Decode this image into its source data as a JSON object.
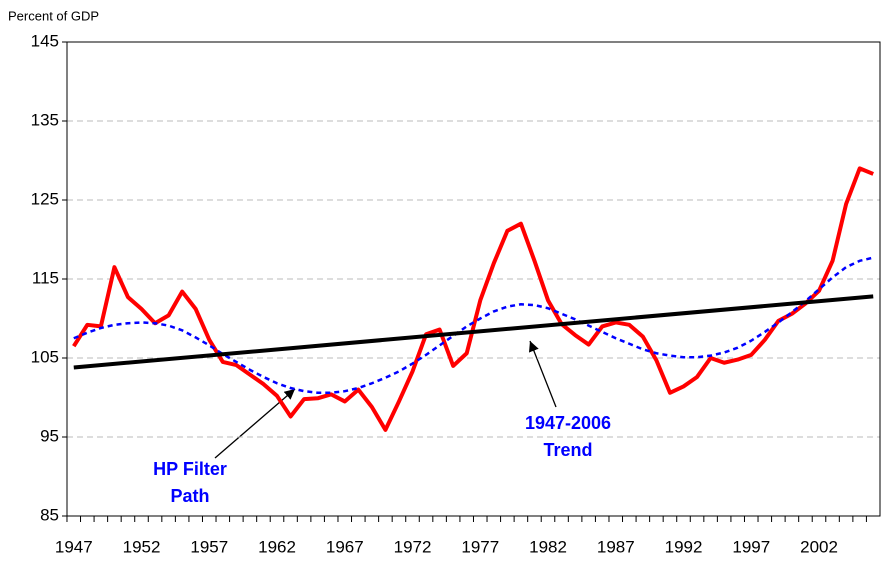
{
  "chart_data": {
    "type": "line",
    "ylabel": "Percent of GDP",
    "x": [
      1947,
      1948,
      1949,
      1950,
      1951,
      1952,
      1953,
      1954,
      1955,
      1956,
      1957,
      1958,
      1959,
      1960,
      1961,
      1962,
      1963,
      1964,
      1965,
      1966,
      1967,
      1968,
      1969,
      1970,
      1971,
      1972,
      1973,
      1974,
      1975,
      1976,
      1977,
      1978,
      1979,
      1980,
      1981,
      1982,
      1983,
      1984,
      1985,
      1986,
      1987,
      1988,
      1989,
      1990,
      1991,
      1992,
      1993,
      1994,
      1995,
      1996,
      1997,
      1998,
      1999,
      2000,
      2001,
      2002,
      2003,
      2004,
      2005,
      2006
    ],
    "series": [
      {
        "color": "#ff0000",
        "style": "solid",
        "values": [
          106.5,
          109.2,
          109,
          116.5,
          112.7,
          111.2,
          109.4,
          110.4,
          113.4,
          111.2,
          107.3,
          104.5,
          104.1,
          102.9,
          101.7,
          100.2,
          97.6,
          99.8,
          99.9,
          100.4,
          99.5,
          101,
          98.8,
          95.9,
          99.5,
          103.3,
          108,
          108.6,
          104,
          105.6,
          112.3,
          117,
          121.1,
          122,
          117.3,
          112.3,
          109.3,
          107.9,
          106.7,
          109,
          109.5,
          109.2,
          107.7,
          104.7,
          100.6,
          101.4,
          102.6,
          105,
          104.4,
          104.8,
          105.4,
          107.3,
          109.7,
          110.6,
          111.9,
          113.5,
          117.3,
          124.5,
          129,
          128.3
        ]
      },
      {
        "color": "#0000ff",
        "style": "dashed",
        "values": [
          107.5,
          108.2,
          108.8,
          109.2,
          109.4,
          109.5,
          109.4,
          109.1,
          108.5,
          107.6,
          106.6,
          105.5,
          104.5,
          103.5,
          102.6,
          101.8,
          101.2,
          100.8,
          100.6,
          100.6,
          100.8,
          101.2,
          101.8,
          102.5,
          103.3,
          104.3,
          105.4,
          106.6,
          107.8,
          109.0,
          110.0,
          110.9,
          111.5,
          111.8,
          111.7,
          111.3,
          110.6,
          109.9,
          109.1,
          108.3,
          107.5,
          106.8,
          106.1,
          105.6,
          105.3,
          105.1,
          105.1,
          105.3,
          105.7,
          106.3,
          107.2,
          108.3,
          109.5,
          110.8,
          112.2,
          113.7,
          115.2,
          116.5,
          117.3,
          117.7
        ]
      },
      {
        "color": "#000000",
        "style": "solid",
        "x": [
          1947,
          2006
        ],
        "values": [
          103.8,
          112.8
        ]
      }
    ],
    "annotations": [
      {
        "lines": [
          "HP Filter",
          "Path"
        ],
        "color": "#0000ff"
      },
      {
        "lines": [
          "1947-2006",
          "Trend"
        ],
        "color": "#0000ff"
      }
    ],
    "xlim": [
      1946.5,
      2006.5
    ],
    "xticks": [
      1947,
      1952,
      1957,
      1962,
      1967,
      1972,
      1977,
      1982,
      1987,
      1992,
      1997,
      2002
    ],
    "ylim": [
      85,
      145
    ],
    "yticks": [
      85,
      95,
      105,
      115,
      125,
      135,
      145
    ],
    "grid": true
  }
}
